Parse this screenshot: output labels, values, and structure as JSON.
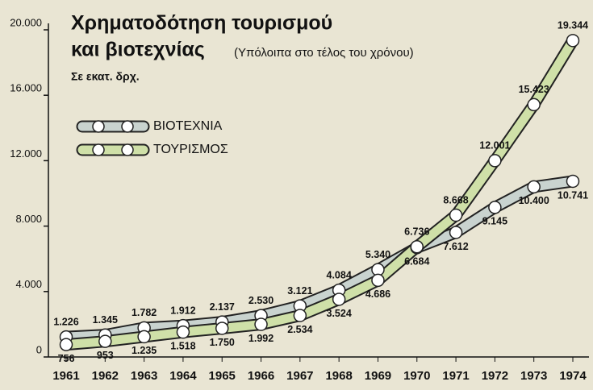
{
  "chart_data": {
    "type": "line",
    "title": [
      "Χρηματοδότηση τουρισμού",
      "και βιοτεχνίας"
    ],
    "subtitle": "(Υπόλοιπα στο τέλος του χρόνου)",
    "y_label": "Σε εκατ. δρχ.",
    "categories": [
      "1961",
      "1962",
      "1963",
      "1964",
      "1965",
      "1966",
      "1967",
      "1968",
      "1969",
      "1970",
      "1971",
      "1972",
      "1973",
      "1974"
    ],
    "series": [
      {
        "name": "ΒΙΟΤΕΧΝΙΑ",
        "color": "#c9d3cf",
        "values": [
          1226,
          1345,
          1782,
          1912,
          2137,
          2530,
          3121,
          4084,
          5340,
          6684,
          7612,
          9145,
          10400,
          10741
        ],
        "value_labels": [
          "1.226",
          "1.345",
          "1.782",
          "1.912",
          "2.137",
          "2.530",
          "3.121",
          "4.084",
          "5.340",
          "6.684",
          "7.612",
          "9.145",
          "10.400",
          "10.741"
        ]
      },
      {
        "name": "ΤΟΥΡΙΣΜΟΣ",
        "color": "#cfe0a8",
        "values": [
          756,
          953,
          1235,
          1518,
          1750,
          1992,
          2534,
          3524,
          4686,
          6736,
          8668,
          12001,
          15423,
          19344
        ],
        "value_labels": [
          "756",
          "953",
          "1.235",
          "1.518",
          "1.750",
          "1.992",
          "2.534",
          "3.524",
          "4.686",
          "6.736",
          "8.668",
          "12.001",
          "15.423",
          "19.344"
        ]
      }
    ],
    "ylim": [
      0,
      20000
    ],
    "yticks": [
      0,
      {
        "value": 4000,
        "label": "4.000"
      },
      {
        "value": 8000,
        "label": "8.000"
      },
      {
        "value": 12000,
        "label": "12.000"
      },
      {
        "value": 16000,
        "label": "16.000"
      },
      {
        "value": 20000,
        "label": "20.000"
      }
    ]
  }
}
